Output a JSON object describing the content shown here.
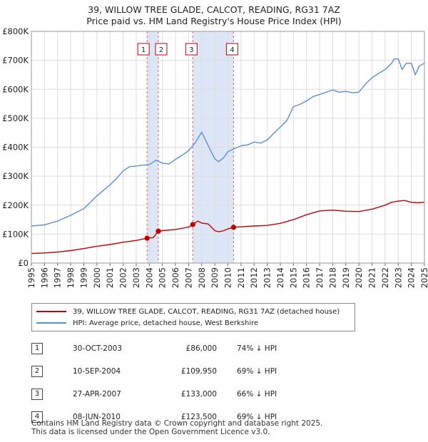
{
  "title_line1": "39, WILLOW TREE GLADE, CALCOT, READING, RG31 7AZ",
  "title_line2": "Price paid vs. HM Land Registry's House Price Index (HPI)",
  "colors": {
    "property": "#c00000",
    "hpi": "#5b8fd0",
    "shade": "#dde6f7",
    "grid": "#dddddd",
    "vline": "#e06060"
  },
  "legend": {
    "property": "39, WILLOW TREE GLADE, CALCOT, READING, RG31 7AZ (detached house)",
    "hpi": "HPI: Average price, detached house, West Berkshire"
  },
  "sales": [
    {
      "num": "1",
      "date": "30-OCT-2003",
      "price": "£86,000",
      "hpi": "74% ↓ HPI"
    },
    {
      "num": "2",
      "date": "10-SEP-2004",
      "price": "£109,950",
      "hpi": "69% ↓ HPI"
    },
    {
      "num": "3",
      "date": "27-APR-2007",
      "price": "£133,000",
      "hpi": "66% ↓ HPI"
    },
    {
      "num": "4",
      "date": "08-JUN-2010",
      "price": "£123,500",
      "hpi": "69% ↓ HPI"
    }
  ],
  "footer_line1": "Contains HM Land Registry data © Crown copyright and database right 2025.",
  "footer_line2": "This data is licensed under the Open Government Licence v3.0.",
  "chart_data": {
    "type": "line",
    "xlim": [
      1995,
      2025
    ],
    "ylim": [
      0,
      800000
    ],
    "x_ticks": [
      "1995",
      "1996",
      "1997",
      "1998",
      "1999",
      "2000",
      "2001",
      "2002",
      "2003",
      "2004",
      "2005",
      "2006",
      "2007",
      "2008",
      "2009",
      "2010",
      "2011",
      "2012",
      "2013",
      "2014",
      "2015",
      "2016",
      "2017",
      "2018",
      "2019",
      "2020",
      "2021",
      "2022",
      "2023",
      "2024",
      "2025"
    ],
    "y_ticks": [
      {
        "value": 0,
        "label": "£0"
      },
      {
        "value": 100000,
        "label": "£100K"
      },
      {
        "value": 200000,
        "label": "£200K"
      },
      {
        "value": 300000,
        "label": "£300K"
      },
      {
        "value": 400000,
        "label": "£400K"
      },
      {
        "value": 500000,
        "label": "£500K"
      },
      {
        "value": 600000,
        "label": "£600K"
      },
      {
        "value": 700000,
        "label": "£700K"
      },
      {
        "value": 800000,
        "label": "£800K"
      }
    ],
    "grid": true,
    "shaded_ranges": [
      [
        2003.83,
        2004.69
      ],
      [
        2007.32,
        2010.43
      ]
    ],
    "markers": [
      {
        "label": "1",
        "x": 2003.83,
        "y": 86000
      },
      {
        "label": "2",
        "x": 2004.69,
        "y": 109950
      },
      {
        "label": "3",
        "x": 2007.32,
        "y": 133000
      },
      {
        "label": "4",
        "x": 2010.43,
        "y": 123500
      }
    ],
    "series": [
      {
        "name": "39, WILLOW TREE GLADE, CALCOT, READING, RG31 7AZ (detached house)",
        "x": [
          1995,
          1996,
          1997,
          1998,
          1999,
          2000,
          2001,
          2002,
          2003,
          2003.83,
          2004.3,
          2004.69,
          2005,
          2006,
          2007,
          2007.32,
          2007.7,
          2008,
          2008.5,
          2009,
          2009.3,
          2009.7,
          2010,
          2010.43,
          2011,
          2012,
          2013,
          2014,
          2015,
          2016,
          2017,
          2018,
          2019,
          2020,
          2021,
          2022,
          2022.5,
          2023,
          2023.5,
          2024,
          2024.5,
          2025
        ],
        "values": [
          33000,
          35000,
          38000,
          43000,
          50000,
          58000,
          64000,
          72000,
          78000,
          86000,
          88000,
          109950,
          112000,
          116000,
          124000,
          133000,
          145000,
          138000,
          135000,
          112000,
          108000,
          112000,
          118000,
          123500,
          125000,
          128000,
          130000,
          137000,
          150000,
          167000,
          180000,
          183000,
          179000,
          178000,
          186000,
          200000,
          210000,
          214000,
          216000,
          210000,
          208000,
          210000
        ]
      },
      {
        "name": "HPI: Average price, detached house, West Berkshire",
        "x": [
          1995,
          1996,
          1997,
          1998,
          1999,
          2000,
          2001,
          2001.5,
          2002,
          2002.5,
          2003,
          2003.5,
          2004,
          2004.5,
          2005,
          2005.5,
          2006,
          2006.5,
          2007,
          2007.5,
          2008,
          2008.5,
          2009,
          2009.3,
          2009.7,
          2010,
          2010.5,
          2011,
          2011.5,
          2012,
          2012.5,
          2013,
          2013.5,
          2014,
          2014.5,
          2015,
          2015.5,
          2016,
          2016.5,
          2017,
          2017.5,
          2018,
          2018.5,
          2019,
          2019.5,
          2020,
          2020.5,
          2021,
          2021.5,
          2022,
          2022.5,
          2022.7,
          2023,
          2023.3,
          2023.6,
          2024,
          2024.3,
          2024.6,
          2025
        ],
        "values": [
          128000,
          132000,
          145000,
          165000,
          188000,
          232000,
          270000,
          292000,
          318000,
          333000,
          335000,
          338000,
          340000,
          355000,
          345000,
          342000,
          358000,
          372000,
          388000,
          415000,
          452000,
          405000,
          360000,
          350000,
          365000,
          385000,
          395000,
          405000,
          408000,
          418000,
          414000,
          425000,
          448000,
          470000,
          492000,
          540000,
          548000,
          560000,
          575000,
          582000,
          590000,
          598000,
          590000,
          593000,
          588000,
          590000,
          618000,
          640000,
          655000,
          668000,
          690000,
          705000,
          705000,
          668000,
          690000,
          690000,
          650000,
          680000,
          690000
        ]
      }
    ]
  }
}
